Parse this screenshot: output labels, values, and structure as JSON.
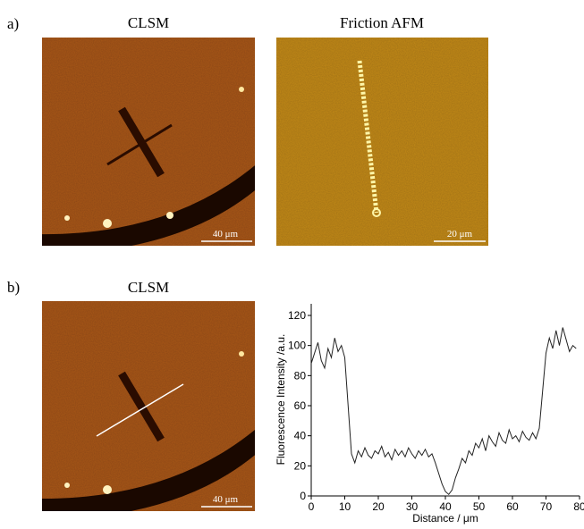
{
  "panels": {
    "a": {
      "label": "a)",
      "left_title": "CLSM",
      "right_title": "Friction AFM",
      "left_scale": "40 μm",
      "right_scale": "20 μm"
    },
    "b": {
      "label": "b)",
      "left_title": "CLSM",
      "left_scale": "40 μm"
    }
  },
  "chart_data": {
    "type": "line",
    "x_label": "Distance / μm",
    "y_label": "Fluorescence Intensity /a.u.",
    "x": [
      0,
      1,
      2,
      3,
      4,
      5,
      6,
      7,
      8,
      9,
      10,
      11,
      12,
      13,
      14,
      15,
      16,
      17,
      18,
      19,
      20,
      21,
      22,
      23,
      24,
      25,
      26,
      27,
      28,
      29,
      30,
      31,
      32,
      33,
      34,
      35,
      36,
      37,
      38,
      39,
      40,
      41,
      42,
      43,
      44,
      45,
      46,
      47,
      48,
      49,
      50,
      51,
      52,
      53,
      54,
      55,
      56,
      57,
      58,
      59,
      60,
      61,
      62,
      63,
      64,
      65,
      66,
      67,
      68,
      69,
      70,
      71,
      72,
      73,
      74,
      75,
      76,
      77,
      78,
      79
    ],
    "values": [
      88,
      95,
      102,
      90,
      85,
      98,
      92,
      105,
      96,
      100,
      92,
      60,
      28,
      22,
      30,
      26,
      32,
      27,
      25,
      30,
      28,
      33,
      26,
      29,
      24,
      31,
      27,
      30,
      26,
      32,
      28,
      25,
      30,
      27,
      31,
      26,
      28,
      22,
      15,
      8,
      3,
      1,
      4,
      12,
      18,
      25,
      22,
      30,
      27,
      35,
      32,
      38,
      30,
      40,
      36,
      33,
      42,
      37,
      35,
      44,
      38,
      40,
      36,
      43,
      39,
      37,
      42,
      38,
      45,
      70,
      95,
      105,
      98,
      110,
      100,
      112,
      104,
      96,
      100,
      98
    ],
    "color": "#222222",
    "xlim": [
      0,
      80
    ],
    "xticks": [
      0,
      10,
      20,
      30,
      40,
      50,
      60,
      70,
      80
    ],
    "ylim": [
      0,
      120
    ],
    "yticks": [
      0,
      20,
      40,
      60,
      80,
      100,
      120
    ]
  }
}
